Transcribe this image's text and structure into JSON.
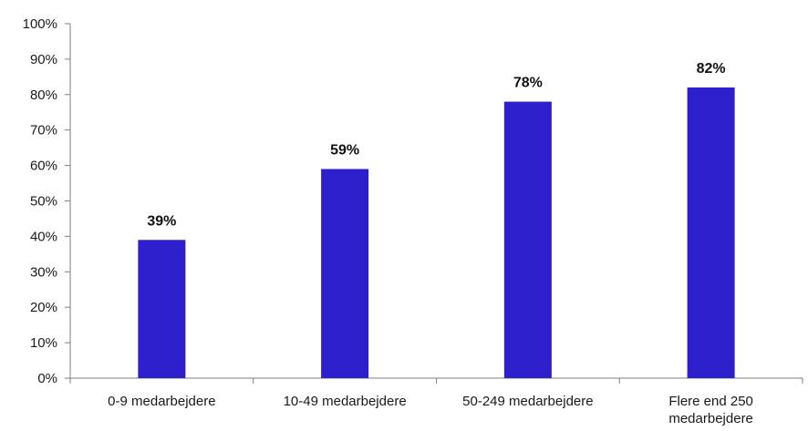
{
  "chart_data": {
    "type": "bar",
    "categories": [
      "0-9 medarbejdere",
      "10-49 medarbejdere",
      "50-249 medarbejdere",
      "Flere end 250 medarbejdere"
    ],
    "category_lines": [
      [
        "0-9 medarbejdere"
      ],
      [
        "10-49 medarbejdere"
      ],
      [
        "50-249 medarbejdere"
      ],
      [
        "Flere end 250",
        "medarbejdere"
      ]
    ],
    "values": [
      39,
      59,
      78,
      82
    ],
    "value_labels": [
      "39%",
      "59%",
      "78%",
      "82%"
    ],
    "ylim": [
      0,
      100
    ],
    "yticks": [
      0,
      10,
      20,
      30,
      40,
      50,
      60,
      70,
      80,
      90,
      100
    ],
    "ytick_labels": [
      "0%",
      "10%",
      "20%",
      "30%",
      "40%",
      "50%",
      "60%",
      "70%",
      "80%",
      "90%",
      "100%"
    ],
    "grid": false,
    "legend": "none",
    "bar_color": "#2d1fcc",
    "axis_color": "#7f7f7f"
  }
}
